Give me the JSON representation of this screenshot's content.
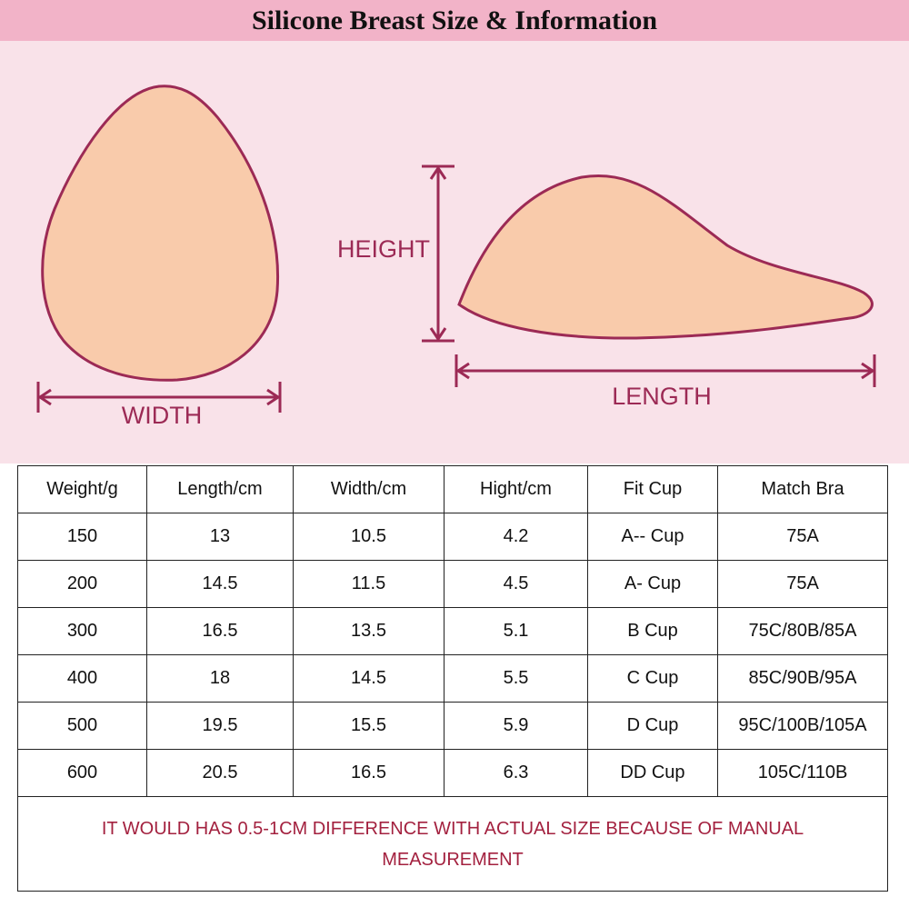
{
  "header": {
    "title": "Silicone Breast Size & Information"
  },
  "diagram": {
    "width_label": "WIDTH",
    "height_label": "HEIGHT",
    "length_label": "LENGTH"
  },
  "table": {
    "columns": [
      "Weight/g",
      "Length/cm",
      "Width/cm",
      "Hight/cm",
      "Fit Cup",
      "Match Bra"
    ],
    "rows": [
      [
        "150",
        "13",
        "10.5",
        "4.2",
        "A-- Cup",
        "75A"
      ],
      [
        "200",
        "14.5",
        "11.5",
        "4.5",
        "A- Cup",
        "75A"
      ],
      [
        "300",
        "16.5",
        "13.5",
        "5.1",
        "B Cup",
        "75C/80B/85A"
      ],
      [
        "400",
        "18",
        "14.5",
        "5.5",
        "C Cup",
        "85C/90B/95A"
      ],
      [
        "500",
        "19.5",
        "15.5",
        "5.9",
        "D Cup",
        "95C/100B/105A"
      ],
      [
        "600",
        "20.5",
        "16.5",
        "6.3",
        "DD Cup",
        "105C/110B"
      ]
    ],
    "note": "IT WOULD HAS 0.5-1CM DIFFERENCE WITH ACTUAL SIZE BECAUSE OF MANUAL MEASUREMENT"
  }
}
